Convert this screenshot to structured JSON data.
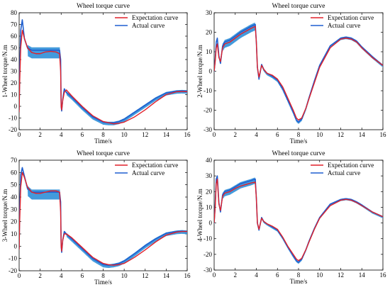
{
  "colors": {
    "expectation": "#e0202a",
    "actual": "#1f5fd0",
    "actual_band": "#2f8fd8",
    "axis": "#000000"
  },
  "legend_position": "top-right",
  "chart_data": [
    {
      "type": "line",
      "title": "Wheel torque curve",
      "xlabel": "Time/s",
      "ylabel": "1-Wheel torque/N.m",
      "xlim": [
        0,
        16
      ],
      "ylim": [
        -20,
        80
      ],
      "xticks": [
        0,
        2,
        4,
        6,
        8,
        10,
        12,
        14,
        16
      ],
      "yticks": [
        -20,
        -10,
        0,
        10,
        20,
        30,
        40,
        50,
        60,
        70,
        80
      ],
      "grid": false,
      "series": [
        {
          "name": "Expectation curve",
          "x": [
            0,
            0.05,
            0.15,
            0.3,
            0.5,
            0.8,
            1.2,
            1.6,
            2.0,
            2.5,
            3.0,
            3.5,
            3.85,
            3.95,
            4.0,
            4.05,
            4.15,
            4.3,
            4.5,
            5.0,
            6.0,
            7.0,
            8.0,
            8.5,
            9.0,
            9.5,
            10.0,
            11.0,
            12.0,
            13.0,
            14.0,
            15.0,
            15.5,
            16.0
          ],
          "y": [
            -5,
            20,
            50,
            65,
            58,
            50,
            46,
            45,
            45,
            46.5,
            47,
            46.5,
            45,
            30,
            0,
            -3,
            5,
            12,
            14,
            9,
            0,
            -8,
            -13,
            -14,
            -15,
            -14.5,
            -13.5,
            -9,
            -3,
            4,
            10,
            12.5,
            12.7,
            12.5
          ]
        },
        {
          "name": "Actual curve",
          "x": [
            0,
            0.05,
            0.15,
            0.3,
            0.5,
            0.8,
            1.2,
            1.6,
            2.0,
            2.5,
            3.0,
            3.5,
            3.85,
            3.95,
            4.0,
            4.05,
            4.15,
            4.3,
            4.5,
            5.0,
            6.0,
            7.0,
            8.0,
            8.5,
            9.0,
            9.5,
            10.0,
            11.0,
            12.0,
            13.0,
            14.0,
            15.0,
            15.5,
            16.0
          ],
          "y": [
            -3,
            30,
            65,
            74,
            58,
            50,
            48,
            48,
            48,
            48,
            48,
            48,
            48,
            40,
            0,
            -4,
            6,
            15,
            12,
            8,
            -1,
            -9,
            -13.5,
            -14,
            -14,
            -13,
            -11,
            -5,
            1,
            7,
            11.5,
            13,
            13.2,
            13
          ]
        }
      ]
    },
    {
      "type": "line",
      "title": "Wheel torque curve",
      "xlabel": "Time/s",
      "ylabel": "2-Wheel torque/N.m",
      "xlim": [
        0,
        16
      ],
      "ylim": [
        -30,
        30
      ],
      "xticks": [
        0,
        2,
        4,
        6,
        8,
        10,
        12,
        14,
        16
      ],
      "yticks": [
        -30,
        -20,
        -10,
        0,
        10,
        20,
        30
      ],
      "grid": false,
      "series": [
        {
          "name": "Expectation curve",
          "x": [
            0,
            0.1,
            0.2,
            0.3,
            0.45,
            0.6,
            0.8,
            1.0,
            1.5,
            2.0,
            2.5,
            3.0,
            3.5,
            3.9,
            4.0,
            4.1,
            4.25,
            4.5,
            4.7,
            5.0,
            5.5,
            6.0,
            6.5,
            7.0,
            7.5,
            7.8,
            8.0,
            8.3,
            8.7,
            9.0,
            9.5,
            10.0,
            11.0,
            12.0,
            12.5,
            13.0,
            13.5,
            14.0,
            15.0,
            16.0
          ],
          "y": [
            0,
            5,
            12,
            14,
            7,
            5,
            12,
            14,
            15,
            17,
            19,
            20.5,
            22,
            23,
            15,
            2,
            -3,
            3,
            1,
            -1,
            -2,
            -4,
            -8,
            -14,
            -20,
            -24,
            -25,
            -24,
            -19,
            -14,
            -6,
            2,
            12,
            16.5,
            17,
            16.5,
            15,
            12,
            7,
            3
          ]
        },
        {
          "name": "Actual curve",
          "x": [
            0,
            0.1,
            0.2,
            0.3,
            0.45,
            0.6,
            0.8,
            1.0,
            1.5,
            2.0,
            2.5,
            3.0,
            3.5,
            3.9,
            4.0,
            4.1,
            4.25,
            4.5,
            4.7,
            5.0,
            5.5,
            6.0,
            6.5,
            7.0,
            7.5,
            7.8,
            8.0,
            8.3,
            8.7,
            9.0,
            9.5,
            10.0,
            11.0,
            12.0,
            12.5,
            13.0,
            13.5,
            14.0,
            15.0,
            16.0
          ],
          "y": [
            0,
            6,
            15,
            17,
            8,
            4,
            13,
            15,
            16,
            18,
            20,
            21.5,
            23,
            24,
            15,
            2,
            -4,
            3.5,
            1,
            -1,
            -2.5,
            -4.5,
            -9,
            -15,
            -21,
            -25,
            -26,
            -24.5,
            -19,
            -13.5,
            -5,
            3,
            13,
            17,
            17.5,
            17,
            15.5,
            12.5,
            7.5,
            3
          ]
        }
      ]
    },
    {
      "type": "line",
      "title": "Wheel torque curve",
      "xlabel": "Time/s",
      "ylabel": "3-Wheel torque/N.m",
      "xlim": [
        0,
        16
      ],
      "ylim": [
        -20,
        70
      ],
      "xticks": [
        0,
        2,
        4,
        6,
        8,
        10,
        12,
        14,
        16
      ],
      "yticks": [
        -20,
        -10,
        0,
        10,
        20,
        30,
        40,
        50,
        60,
        70
      ],
      "grid": false,
      "series": [
        {
          "name": "Expectation curve",
          "x": [
            0,
            0.05,
            0.15,
            0.3,
            0.5,
            0.8,
            1.2,
            1.6,
            2.0,
            2.5,
            3.0,
            3.5,
            3.85,
            3.95,
            4.0,
            4.05,
            4.15,
            4.3,
            4.5,
            5.0,
            6.0,
            7.0,
            8.0,
            8.5,
            9.0,
            9.5,
            10.0,
            11.0,
            12.0,
            13.0,
            14.0,
            15.0,
            15.5,
            16.0
          ],
          "y": [
            -3,
            20,
            48,
            60,
            56,
            48,
            44,
            43,
            43,
            44,
            45,
            45,
            44,
            28,
            0,
            -4,
            5,
            10,
            10,
            7,
            -1,
            -9,
            -14,
            -15,
            -15.5,
            -15,
            -14,
            -9,
            -3,
            3.5,
            9,
            11.5,
            12,
            12
          ]
        },
        {
          "name": "Actual curve",
          "x": [
            0,
            0.05,
            0.15,
            0.3,
            0.5,
            0.8,
            1.2,
            1.6,
            2.0,
            2.5,
            3.0,
            3.5,
            3.85,
            3.95,
            4.0,
            4.05,
            4.15,
            4.3,
            4.5,
            5.0,
            6.0,
            7.0,
            8.0,
            8.5,
            9.0,
            9.5,
            10.0,
            11.0,
            12.0,
            13.0,
            14.0,
            15.0,
            15.5,
            16.0
          ],
          "y": [
            -2,
            30,
            58,
            64,
            57,
            47,
            44,
            44,
            44,
            44,
            44,
            44,
            44,
            36,
            0,
            -5,
            5,
            12,
            10,
            6,
            -2,
            -10,
            -15,
            -15.5,
            -15,
            -14,
            -12,
            -6,
            0.5,
            6,
            10.5,
            12,
            12.3,
            12
          ]
        }
      ]
    },
    {
      "type": "line",
      "title": "Wheel torque curve",
      "xlabel": "Time/s",
      "ylabel": "4-Wheel torque/N.m",
      "xlim": [
        0,
        16
      ],
      "ylim": [
        -30,
        40
      ],
      "xticks": [
        0,
        2,
        4,
        6,
        8,
        10,
        12,
        14,
        16
      ],
      "yticks": [
        -30,
        -20,
        -10,
        0,
        10,
        20,
        30,
        40
      ],
      "grid": false,
      "series": [
        {
          "name": "Expectation curve",
          "x": [
            0,
            0.1,
            0.2,
            0.3,
            0.45,
            0.6,
            0.8,
            1.0,
            1.5,
            2.0,
            2.5,
            3.0,
            3.5,
            3.9,
            4.0,
            4.1,
            4.25,
            4.5,
            4.7,
            5.0,
            5.5,
            6.0,
            6.5,
            7.0,
            7.5,
            7.8,
            8.0,
            8.3,
            8.7,
            9.0,
            9.5,
            10.0,
            11.0,
            12.0,
            12.5,
            13.0,
            13.5,
            14.0,
            15.0,
            16.0
          ],
          "y": [
            0,
            10,
            25,
            28,
            12,
            8,
            17,
            19,
            20,
            22,
            23.5,
            24.5,
            25.5,
            26,
            16,
            0,
            -4,
            3,
            1,
            -0.5,
            -2,
            -4,
            -9,
            -15,
            -20,
            -23,
            -24,
            -22.5,
            -17,
            -12,
            -4,
            3,
            11,
            14.5,
            15,
            14.5,
            13,
            11,
            7,
            4
          ]
        },
        {
          "name": "Actual curve",
          "x": [
            0,
            0.1,
            0.2,
            0.3,
            0.45,
            0.6,
            0.8,
            1.0,
            1.5,
            2.0,
            2.5,
            3.0,
            3.5,
            3.9,
            4.0,
            4.1,
            4.25,
            4.5,
            4.7,
            5.0,
            5.5,
            6.0,
            6.5,
            7.0,
            7.5,
            7.8,
            8.0,
            8.3,
            8.7,
            9.0,
            9.5,
            10.0,
            11.0,
            12.0,
            12.5,
            13.0,
            13.5,
            14.0,
            15.0,
            16.0
          ],
          "y": [
            0,
            12,
            28,
            30,
            13,
            7,
            18,
            20,
            21,
            23,
            25,
            26,
            27,
            28,
            16,
            0,
            -4.5,
            3.5,
            1,
            -0.5,
            -2.5,
            -4.5,
            -9.5,
            -15.5,
            -21,
            -24,
            -25,
            -23,
            -17,
            -11.5,
            -3.5,
            3.5,
            12,
            15,
            15.5,
            15,
            13.5,
            11.5,
            7,
            4
          ]
        }
      ]
    }
  ]
}
